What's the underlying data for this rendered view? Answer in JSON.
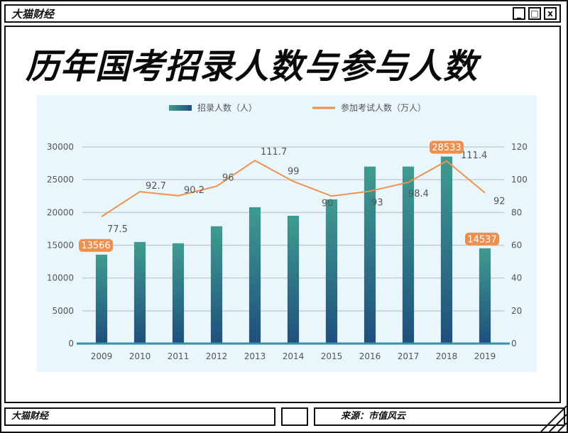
{
  "window": {
    "brand": "大猫财经",
    "buttons": {
      "minimize": "_",
      "maximize": "□",
      "close": "x"
    }
  },
  "headline": "历年国考招录人数与参与人数",
  "footer": {
    "left": "大猫财经",
    "source": "来源：市值风云"
  },
  "colors": {
    "bar_top": "#3f9c90",
    "bar_bottom": "#1f4f7d",
    "line": "#f0924f",
    "plot_bg": "#e9f6fb",
    "label_highlight": "#ef8f4d"
  },
  "chart_data": {
    "type": "bar",
    "categories": [
      "2009",
      "2010",
      "2011",
      "2012",
      "2013",
      "2014",
      "2015",
      "2016",
      "2017",
      "2018",
      "2019"
    ],
    "series": [
      {
        "name": "招录人数（人）",
        "type": "bar",
        "axis": "left",
        "values": [
          13566,
          15500,
          15300,
          17900,
          20800,
          19500,
          22000,
          27000,
          27000,
          28533,
          14537
        ],
        "labels": [
          "13566",
          "",
          "",
          "",
          "",
          "",
          "",
          "",
          "",
          "28533",
          "14537"
        ]
      },
      {
        "name": "参加考试人数（万人）",
        "type": "line",
        "axis": "right",
        "values": [
          77.5,
          92.7,
          90.2,
          96,
          111.7,
          99,
          90,
          93,
          98.4,
          111.4,
          92
        ],
        "labels": [
          "77.5",
          "92.7",
          "90.2",
          "96",
          "111.7",
          "99",
          "90",
          "93",
          "98.4",
          "111.4",
          "92"
        ]
      }
    ],
    "y_left": {
      "ticks": [
        "0",
        "5000",
        "10000",
        "15000",
        "20000",
        "25000",
        "30000"
      ],
      "range": [
        0,
        30000
      ]
    },
    "y_right": {
      "ticks": [
        "0",
        "20",
        "40",
        "60",
        "80",
        "100",
        "120"
      ],
      "range": [
        0,
        120
      ]
    },
    "grid": true,
    "legend": "top-center"
  }
}
